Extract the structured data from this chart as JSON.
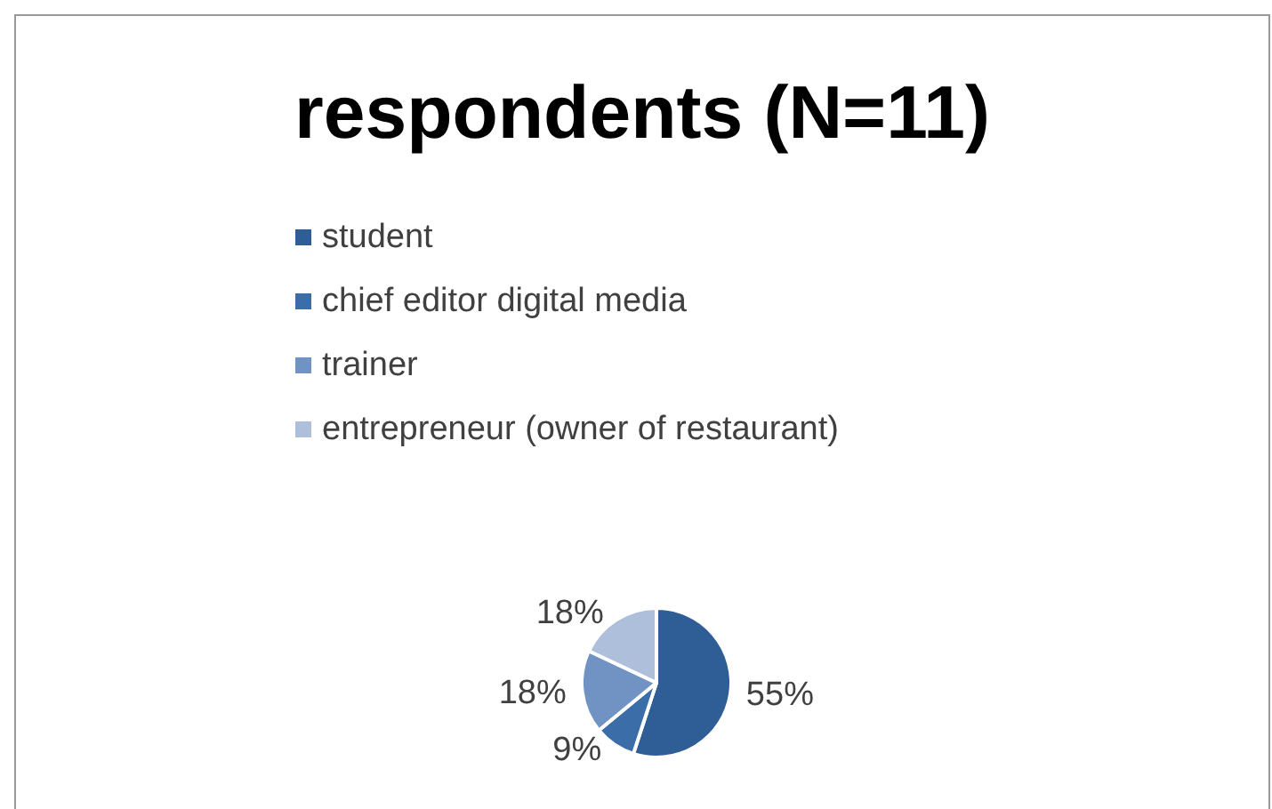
{
  "chart_data": {
    "type": "pie",
    "title": "respondents (N=11)",
    "categories": [
      "student",
      "chief editor digital media",
      "trainer",
      "entrepreneur (owner of restaurant)"
    ],
    "values": [
      55,
      9,
      18,
      18
    ],
    "colors": [
      "#2f5d95",
      "#3b6ea8",
      "#7093c4",
      "#aebfdc"
    ],
    "value_labels": [
      "55%",
      "9%",
      "18%",
      "18%"
    ],
    "legend": "top"
  }
}
